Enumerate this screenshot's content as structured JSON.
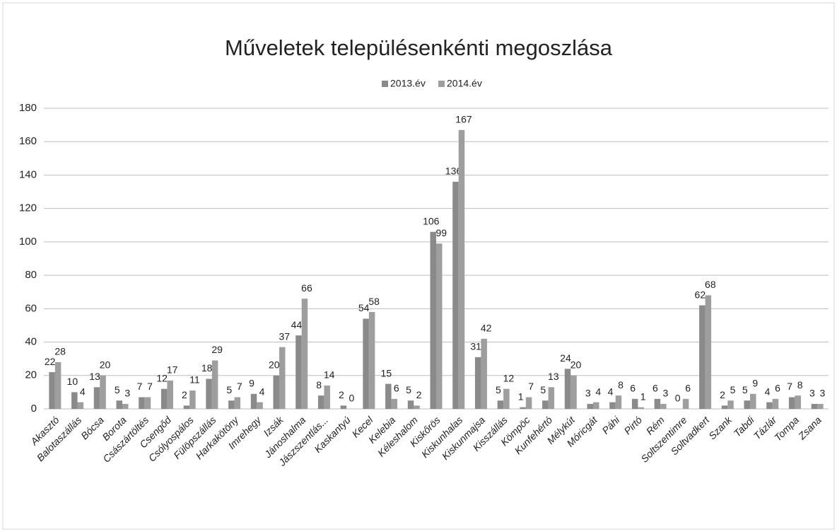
{
  "chart_data": {
    "type": "bar",
    "title": "Műveletek településenkénti megoszlása",
    "categories": [
      "Akasztó",
      "Balotaszállás",
      "Bócsa",
      "Borota",
      "Császártöltés",
      "Csengőd",
      "Csólyospálos",
      "Fülöpszállás",
      "Harkakötöny",
      "Imrehegy",
      "Izsák",
      "Jánoshalma",
      "Jászszentlás...",
      "Kaskantyú",
      "Kecel",
      "Kelebia",
      "Kéleshalom",
      "Kiskőrös",
      "Kiskunhalas",
      "Kiskunmajsa",
      "Kisszállás",
      "Kömpöc",
      "Kunfehértó",
      "Mélykút",
      "Móricgát",
      "Páhi",
      "Pirtó",
      "Rém",
      "Soltszentimre",
      "Soltvadkert",
      "Szank",
      "Tabdi",
      "Tázlár",
      "Tompa",
      "Zsana"
    ],
    "series": [
      {
        "name": "2013.év",
        "color": "#8a8a8a",
        "values": [
          22,
          10,
          13,
          5,
          7,
          12,
          2,
          18,
          5,
          9,
          20,
          44,
          8,
          2,
          54,
          15,
          5,
          106,
          136,
          31,
          5,
          1,
          5,
          24,
          3,
          4,
          6,
          6,
          0,
          62,
          2,
          5,
          4,
          7,
          3
        ]
      },
      {
        "name": "2014.év",
        "color": "#9e9e9e",
        "values": [
          28,
          4,
          20,
          3,
          7,
          17,
          11,
          29,
          7,
          4,
          37,
          66,
          14,
          0,
          58,
          6,
          2,
          99,
          167,
          42,
          12,
          7,
          13,
          20,
          4,
          8,
          1,
          3,
          6,
          68,
          5,
          9,
          6,
          8,
          3
        ]
      }
    ],
    "ylim": [
      0,
      180
    ],
    "yticks": [
      0,
      20,
      40,
      60,
      80,
      100,
      120,
      140,
      160,
      180
    ],
    "grid": true,
    "legend": "top"
  }
}
